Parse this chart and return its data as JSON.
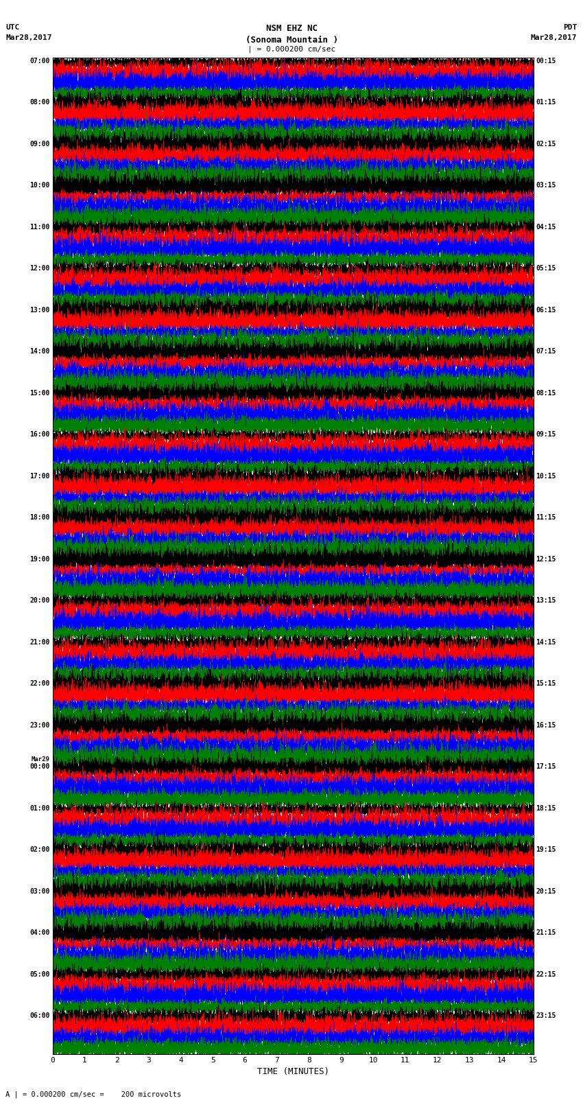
{
  "title_line1": "NSM EHZ NC",
  "title_line2": "(Sonoma Mountain )",
  "title_line3": "| = 0.000200 cm/sec",
  "left_header_line1": "UTC",
  "left_header_line2": "Mar28,2017",
  "right_header_line1": "PDT",
  "right_header_line2": "Mar28,2017",
  "bottom_label": "TIME (MINUTES)",
  "bottom_note": "A | = 0.000200 cm/sec =    200 microvolts",
  "utc_times": [
    "07:00",
    "08:00",
    "09:00",
    "10:00",
    "11:00",
    "12:00",
    "13:00",
    "14:00",
    "15:00",
    "16:00",
    "17:00",
    "18:00",
    "19:00",
    "20:00",
    "21:00",
    "22:00",
    "23:00",
    "Mar29\n00:00",
    "01:00",
    "02:00",
    "03:00",
    "04:00",
    "05:00",
    "06:00"
  ],
  "pdt_times": [
    "00:15",
    "01:15",
    "02:15",
    "03:15",
    "04:15",
    "05:15",
    "06:15",
    "07:15",
    "08:15",
    "09:15",
    "10:15",
    "11:15",
    "12:15",
    "13:15",
    "14:15",
    "15:15",
    "16:15",
    "17:15",
    "18:15",
    "19:15",
    "20:15",
    "21:15",
    "22:15",
    "23:15"
  ],
  "colors": [
    "black",
    "red",
    "blue",
    "green"
  ],
  "bg_color": "white",
  "num_rows": 24,
  "traces_per_row": 4,
  "x_ticks": [
    0,
    1,
    2,
    3,
    4,
    5,
    6,
    7,
    8,
    9,
    10,
    11,
    12,
    13,
    14,
    15
  ],
  "x_min": 0,
  "x_max": 15,
  "figsize": [
    8.5,
    16.13
  ],
  "dpi": 100
}
